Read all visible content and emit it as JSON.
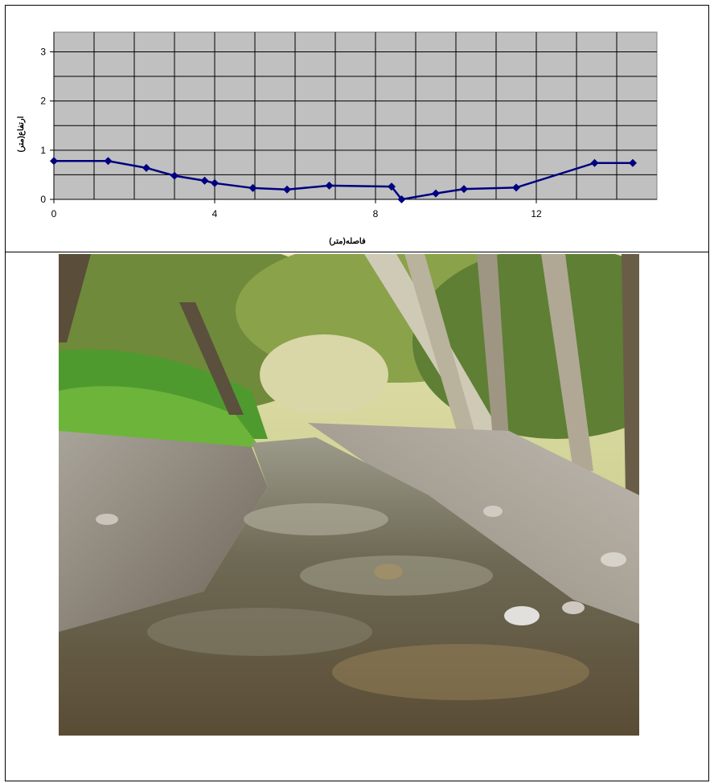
{
  "chart_data": {
    "type": "line",
    "xlabel": "فاصله(متر)",
    "ylabel": "ارتفاع(متر)",
    "xlim": [
      0,
      15
    ],
    "ylim": [
      0,
      3.4
    ],
    "x_ticks": [
      0,
      4,
      8,
      12
    ],
    "y_ticks": [
      0,
      1,
      2,
      3
    ],
    "grid": true,
    "plot_background": "#c0c0c0",
    "series": [
      {
        "color": "#000080",
        "marker": "diamond",
        "x": [
          0,
          1.35,
          2.3,
          3.0,
          3.75,
          4.0,
          4.95,
          5.8,
          6.85,
          8.4,
          8.65,
          9.5,
          10.2,
          11.5,
          13.45,
          14.4
        ],
        "y": [
          0.78,
          0.78,
          0.64,
          0.48,
          0.38,
          0.33,
          0.23,
          0.2,
          0.28,
          0.26,
          0.0,
          0.12,
          0.21,
          0.24,
          0.74,
          0.74
        ]
      }
    ]
  },
  "photo": {
    "subject": "stream-photo"
  }
}
